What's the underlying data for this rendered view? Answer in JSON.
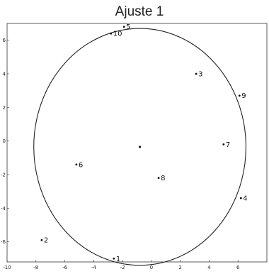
{
  "chart_data": {
    "type": "scatter",
    "title": "Ajuste 1",
    "xlabel": "",
    "ylabel": "",
    "xlim": [
      -10,
      8
    ],
    "ylim": [
      -7.2,
      7
    ],
    "xticks": [
      -10,
      -8,
      -6,
      -4,
      -2,
      0,
      2,
      4,
      6
    ],
    "yticks": [
      6,
      4,
      2,
      0,
      -2,
      -4,
      -6
    ],
    "xtick_labels": [
      "-10",
      "-8",
      "-6",
      "-4",
      "-2",
      "0",
      "2",
      "4",
      "6"
    ],
    "ytick_labels": [
      "6",
      "4",
      "2",
      "0",
      "-2",
      "-4",
      "-6"
    ],
    "grid": false,
    "points": [
      {
        "label": "1",
        "x": -2.6,
        "y": -7.0
      },
      {
        "label": "2",
        "x": -7.6,
        "y": -5.9
      },
      {
        "label": "3",
        "x": 3.1,
        "y": 4.0
      },
      {
        "label": "4",
        "x": 6.2,
        "y": -3.4
      },
      {
        "label": "5",
        "x": -1.9,
        "y": 6.8
      },
      {
        "label": "6",
        "x": -5.2,
        "y": -1.4
      },
      {
        "label": "7",
        "x": 5.0,
        "y": -0.2
      },
      {
        "label": "8",
        "x": 0.5,
        "y": -2.2
      },
      {
        "label": "9",
        "x": 6.1,
        "y": 2.7
      },
      {
        "label": "10",
        "x": -2.8,
        "y": 6.4
      }
    ],
    "center": {
      "x": -0.8,
      "y": -0.35
    },
    "ellipse": {
      "cx": -0.8,
      "cy": -0.35,
      "rx": 7.35,
      "ry": 7.05
    }
  }
}
